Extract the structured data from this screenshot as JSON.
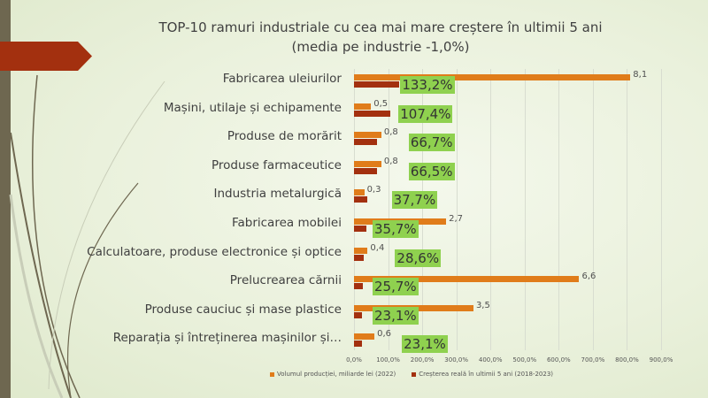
{
  "chart_data": {
    "type": "bar",
    "title": "TOP-10 ramuri industriale cu cea mai mare creștere în ultimii 5 ani",
    "subtitle": "(media pe industrie -1,0%)",
    "categories": [
      "Fabricarea uleiurilor",
      "Mașini, utilaje și echipamente",
      "Produse de morărit",
      "Produse farmaceutice",
      "Industria metalurgică",
      "Fabricarea mobilei",
      "Calculatoare, produse electronice și optice",
      "Prelucrearea cărnii",
      "Produse cauciuc și mase plastice",
      "Reparația și întreținerea mașinilor și…"
    ],
    "series": [
      {
        "name": "Volumul producției, miliarde lei (2022)",
        "color": "#e07c1a",
        "values": [
          8.1,
          0.5,
          0.8,
          0.8,
          0.3,
          2.7,
          0.4,
          6.6,
          3.5,
          0.6
        ],
        "labels": [
          "8,1",
          "0,5",
          "0,8",
          "0,8",
          "0,3",
          "2,7",
          "0,4",
          "6,6",
          "3,5",
          "0,6"
        ]
      },
      {
        "name": "Creșterea reală în ultimii 5 ani (2018-2023)",
        "color": "#a3300f",
        "values": [
          133.2,
          107.4,
          66.7,
          66.5,
          37.7,
          35.7,
          28.6,
          25.7,
          23.1,
          23.1
        ],
        "labels": [
          "133,2%",
          "107,4%",
          "66,7%",
          "66,5%",
          "37,7%",
          "35,7%",
          "28,6%",
          "25,7%",
          "23,1%",
          "23,1%"
        ]
      }
    ],
    "xlim": [
      0,
      900
    ],
    "xticks": [
      "0,0%",
      "100,0%",
      "200,0%",
      "300,0%",
      "400,0%",
      "500,0%",
      "600,0%",
      "700,0%",
      "800,0%",
      "900,0%"
    ],
    "legend": "bottom",
    "grid": true
  }
}
